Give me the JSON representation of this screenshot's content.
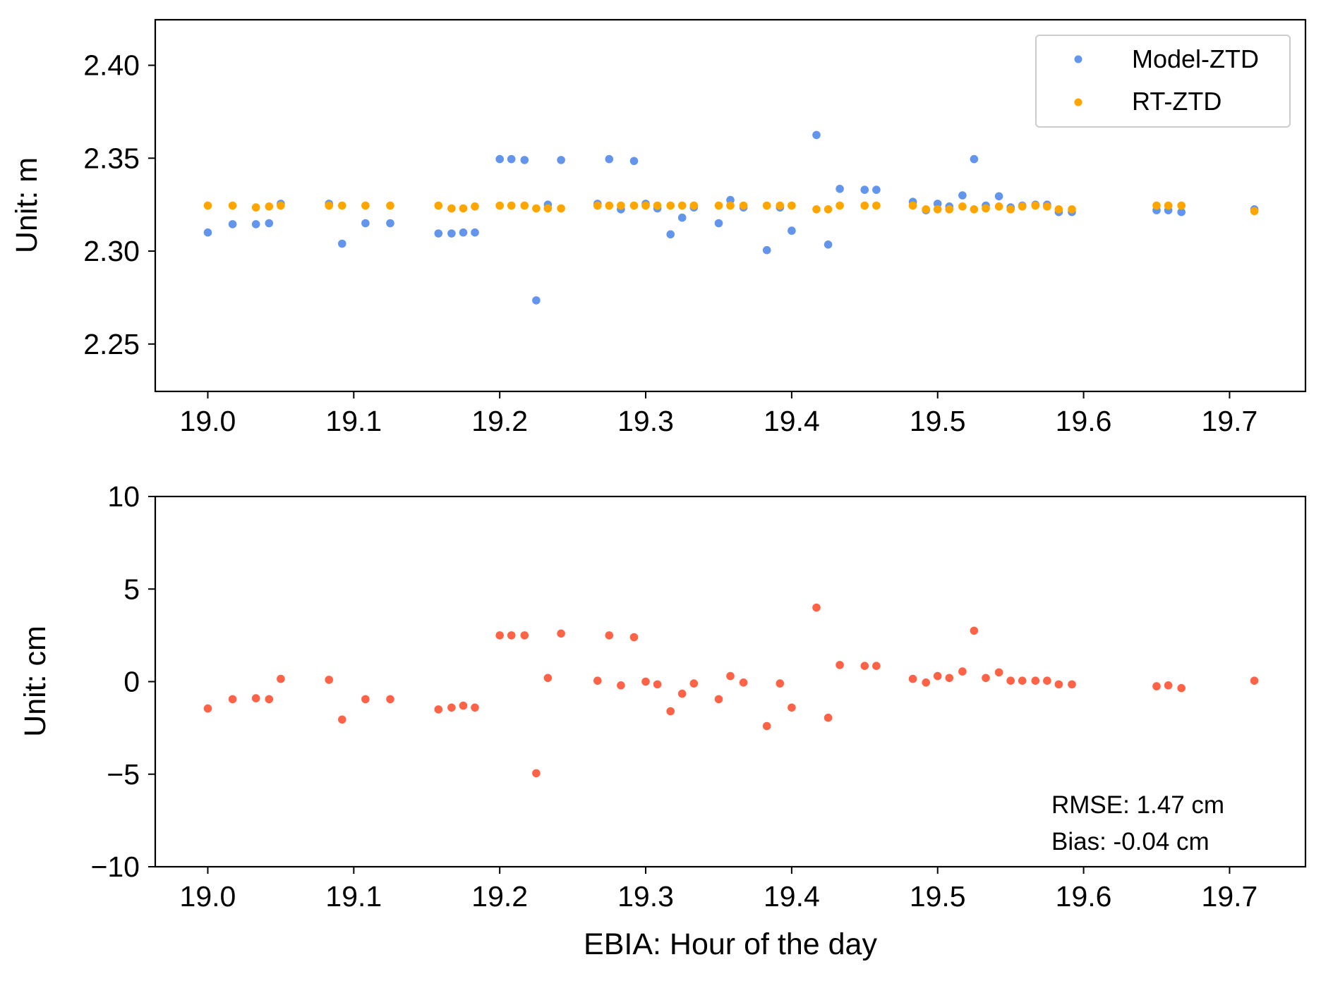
{
  "chart_data": [
    {
      "type": "scatter",
      "title": "",
      "xlabel": "",
      "ylabel": "Unit: m",
      "xlim": [
        18.964,
        19.752
      ],
      "ylim": [
        2.2245,
        2.4245
      ],
      "xticks": [
        "19.0",
        "19.1",
        "19.2",
        "19.3",
        "19.4",
        "19.5",
        "19.6",
        "19.7"
      ],
      "yticks": [
        "2.25",
        "2.30",
        "2.35",
        "2.40"
      ],
      "grid": false,
      "legend": "top-right",
      "series": [
        {
          "name": "Model-ZTD",
          "color": "#6495ED",
          "x": [
            19.0,
            19.017,
            19.033,
            19.042,
            19.05,
            19.083,
            19.092,
            19.108,
            19.125,
            19.158,
            19.167,
            19.175,
            19.183,
            19.2,
            19.208,
            19.217,
            19.225,
            19.233,
            19.242,
            19.267,
            19.275,
            19.283,
            19.292,
            19.3,
            19.308,
            19.317,
            19.325,
            19.333,
            19.35,
            19.358,
            19.367,
            19.383,
            19.392,
            19.4,
            19.417,
            19.425,
            19.433,
            19.45,
            19.458,
            19.483,
            19.492,
            19.5,
            19.508,
            19.517,
            19.525,
            19.533,
            19.542,
            19.55,
            19.558,
            19.567,
            19.575,
            19.583,
            19.592,
            19.65,
            19.658,
            19.667,
            19.717
          ],
          "y": [
            2.31,
            2.3145,
            2.3145,
            2.315,
            2.3255,
            2.3255,
            2.304,
            2.315,
            2.315,
            2.3095,
            2.3095,
            2.31,
            2.31,
            2.3495,
            2.3495,
            2.349,
            2.2735,
            2.325,
            2.349,
            2.3255,
            2.3495,
            2.3225,
            2.3485,
            2.3255,
            2.323,
            2.309,
            2.318,
            2.3235,
            2.315,
            2.3275,
            2.3235,
            2.3005,
            2.3235,
            2.311,
            2.3625,
            2.3035,
            2.3335,
            2.333,
            2.333,
            2.3265,
            2.322,
            2.3255,
            2.324,
            2.33,
            2.3495,
            2.3245,
            2.3295,
            2.3235,
            2.3245,
            2.325,
            2.325,
            2.321,
            2.321,
            2.322,
            2.322,
            2.321,
            2.3225
          ]
        },
        {
          "name": "RT-ZTD",
          "color": "#FFA500",
          "x": [
            19.0,
            19.017,
            19.033,
            19.042,
            19.05,
            19.083,
            19.092,
            19.108,
            19.125,
            19.158,
            19.167,
            19.175,
            19.183,
            19.2,
            19.208,
            19.217,
            19.225,
            19.233,
            19.242,
            19.267,
            19.275,
            19.283,
            19.292,
            19.3,
            19.308,
            19.317,
            19.325,
            19.333,
            19.35,
            19.358,
            19.367,
            19.383,
            19.392,
            19.4,
            19.417,
            19.425,
            19.433,
            19.45,
            19.458,
            19.483,
            19.492,
            19.5,
            19.508,
            19.517,
            19.525,
            19.533,
            19.542,
            19.55,
            19.558,
            19.567,
            19.575,
            19.583,
            19.592,
            19.65,
            19.658,
            19.667,
            19.717
          ],
          "y": [
            2.3245,
            2.3245,
            2.3235,
            2.324,
            2.3245,
            2.3245,
            2.3245,
            2.3245,
            2.3245,
            2.3245,
            2.323,
            2.323,
            2.324,
            2.3245,
            2.3245,
            2.3245,
            2.323,
            2.323,
            2.323,
            2.3245,
            2.3245,
            2.3245,
            2.3245,
            2.3245,
            2.3245,
            2.3245,
            2.3245,
            2.3245,
            2.3245,
            2.3245,
            2.3245,
            2.3245,
            2.3245,
            2.3245,
            2.3225,
            2.3225,
            2.3245,
            2.3245,
            2.3245,
            2.3245,
            2.3225,
            2.3225,
            2.3225,
            2.324,
            2.3225,
            2.323,
            2.324,
            2.3225,
            2.324,
            2.3245,
            2.324,
            2.3225,
            2.3225,
            2.3245,
            2.3245,
            2.3245,
            2.3215
          ]
        }
      ]
    },
    {
      "type": "scatter",
      "title": "",
      "xlabel": "EBIA: Hour of the day",
      "ylabel": "Unit: cm",
      "xlim": [
        18.964,
        19.752
      ],
      "ylim": [
        -10,
        10
      ],
      "xticks": [
        "19.0",
        "19.1",
        "19.2",
        "19.3",
        "19.4",
        "19.5",
        "19.6",
        "19.7"
      ],
      "yticks": [
        "−10",
        "−5",
        "0",
        "5",
        "10"
      ],
      "grid": false,
      "series": [
        {
          "color": "#FF6347",
          "x": [
            19.0,
            19.017,
            19.033,
            19.042,
            19.05,
            19.083,
            19.092,
            19.108,
            19.125,
            19.158,
            19.167,
            19.175,
            19.183,
            19.2,
            19.208,
            19.217,
            19.225,
            19.233,
            19.242,
            19.267,
            19.275,
            19.283,
            19.292,
            19.3,
            19.308,
            19.317,
            19.325,
            19.333,
            19.35,
            19.358,
            19.367,
            19.383,
            19.392,
            19.4,
            19.417,
            19.425,
            19.433,
            19.45,
            19.458,
            19.483,
            19.492,
            19.5,
            19.508,
            19.517,
            19.525,
            19.533,
            19.542,
            19.55,
            19.558,
            19.567,
            19.575,
            19.583,
            19.592,
            19.65,
            19.658,
            19.667,
            19.717
          ],
          "y": [
            -1.45,
            -0.95,
            -0.9,
            -0.95,
            0.15,
            0.1,
            -2.05,
            -0.95,
            -0.95,
            -1.5,
            -1.4,
            -1.3,
            -1.4,
            2.5,
            2.5,
            2.5,
            -4.95,
            0.2,
            2.6,
            0.05,
            2.5,
            -0.2,
            2.4,
            0.0,
            -0.15,
            -1.6,
            -0.65,
            -0.1,
            -0.95,
            0.3,
            -0.05,
            -2.4,
            -0.1,
            -1.4,
            4.0,
            -1.95,
            0.9,
            0.85,
            0.85,
            0.15,
            -0.05,
            0.3,
            0.2,
            0.55,
            2.75,
            0.2,
            0.5,
            0.05,
            0.05,
            0.05,
            0.05,
            -0.15,
            -0.15,
            -0.25,
            -0.2,
            -0.35,
            0.05
          ]
        }
      ],
      "annotations": [
        "RMSE: 1.47 cm",
        "Bias: -0.04 cm"
      ]
    }
  ]
}
